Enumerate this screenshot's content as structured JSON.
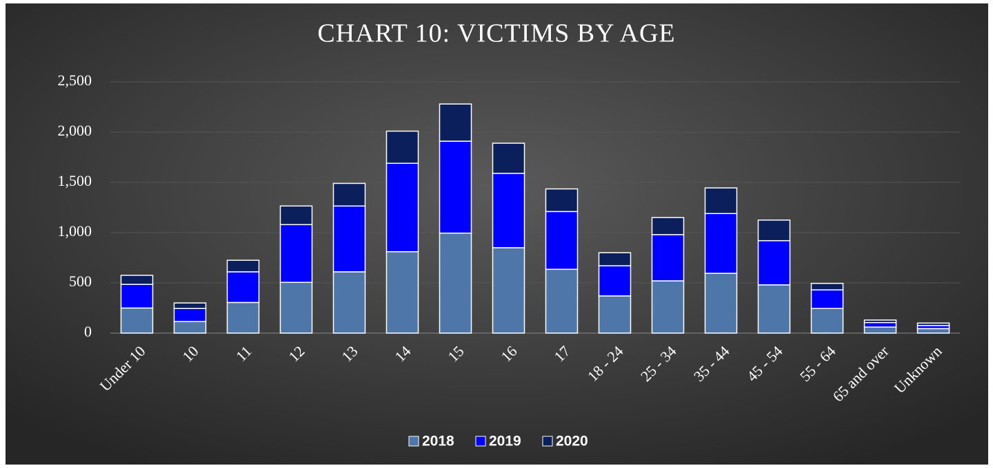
{
  "chart_data": {
    "type": "stacked_bar",
    "title": "CHART 10: VICTIMS BY AGE",
    "categories": [
      "Under 10",
      "10",
      "11",
      "12",
      "13",
      "14",
      "15",
      "16",
      "17",
      "18 - 24",
      "25 - 34",
      "35 - 44",
      "45 - 54",
      "55 - 64",
      "65 and over",
      "Unknown"
    ],
    "series": [
      {
        "name": "2018",
        "color": "#4f76a8",
        "values": [
          250,
          115,
          305,
          505,
          610,
          810,
          995,
          850,
          635,
          370,
          520,
          595,
          480,
          245,
          60,
          45
        ]
      },
      {
        "name": "2019",
        "color": "#0000ff",
        "values": [
          235,
          130,
          305,
          575,
          655,
          880,
          915,
          740,
          575,
          300,
          460,
          595,
          440,
          185,
          45,
          30
        ]
      },
      {
        "name": "2020",
        "color": "#0b1f5c",
        "values": [
          90,
          55,
          115,
          185,
          225,
          320,
          370,
          300,
          225,
          130,
          170,
          255,
          205,
          65,
          25,
          25
        ]
      }
    ],
    "ylim": [
      0,
      2500
    ],
    "yticks": [
      0,
      500,
      {
        "value": 1000,
        "label": "1,000"
      },
      {
        "value": 1500,
        "label": "1,500"
      },
      {
        "value": 2000,
        "label": "2,000"
      },
      {
        "value": 2500,
        "label": "2,500"
      }
    ],
    "grid": true,
    "legend": "bottom"
  }
}
